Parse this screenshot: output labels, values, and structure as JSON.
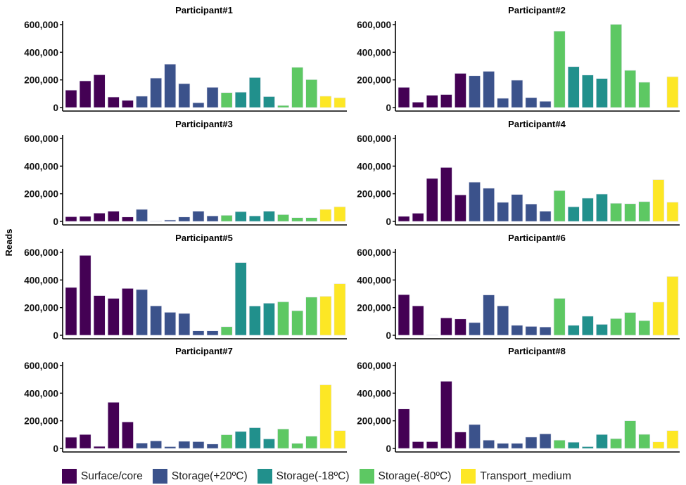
{
  "chart_data": {
    "type": "bar",
    "ylabel": "Reads",
    "ylim": [
      0,
      600000
    ],
    "yticks": [
      0,
      200000,
      400000,
      600000
    ],
    "ytick_labels": [
      "0",
      "200,000",
      "400,000",
      "600,000"
    ],
    "grid": false,
    "legend_position": "bottom",
    "legend": [
      {
        "name": "Surface/core",
        "color": "#440154"
      },
      {
        "name": "Storage(+20ºC)",
        "color": "#3b528b"
      },
      {
        "name": "Storage(-18ºC)",
        "color": "#21908c"
      },
      {
        "name": "Storage(-80ºC)",
        "color": "#5dc863"
      },
      {
        "name": "Transport_medium",
        "color": "#fde725"
      }
    ],
    "slot_groups": [
      0,
      0,
      0,
      0,
      0,
      1,
      1,
      1,
      1,
      1,
      1,
      3,
      2,
      2,
      2,
      3,
      3,
      3,
      4,
      4
    ],
    "facets": [
      {
        "title": "Participant#1",
        "values": [
          126000,
          193000,
          237000,
          76000,
          52000,
          82000,
          213000,
          314000,
          173000,
          35000,
          146000,
          108000,
          111000,
          217000,
          79000,
          15000,
          291000,
          202000,
          82000,
          71000
        ]
      },
      {
        "title": "Participant#2",
        "values": [
          146000,
          39000,
          89000,
          94000,
          247000,
          230000,
          262000,
          67000,
          198000,
          72000,
          45000,
          553000,
          296000,
          235000,
          210000,
          602000,
          269000,
          183000,
          null,
          223000
        ]
      },
      {
        "title": "Participant#3",
        "values": [
          34000,
          37000,
          60000,
          74000,
          32000,
          87000,
          3000,
          10000,
          32000,
          74000,
          40000,
          44000,
          71000,
          40000,
          74000,
          49000,
          27000,
          27000,
          87000,
          106000
        ]
      },
      {
        "title": "Participant#4",
        "values": [
          37000,
          59000,
          311000,
          390000,
          192000,
          284000,
          240000,
          138000,
          195000,
          126000,
          74000,
          223000,
          106000,
          168000,
          198000,
          131000,
          128000,
          143000,
          302000,
          139000
        ]
      },
      {
        "title": "Participant#5",
        "values": [
          346000,
          578000,
          287000,
          267000,
          339000,
          331000,
          213000,
          166000,
          158000,
          32000,
          32000,
          62000,
          526000,
          212000,
          232000,
          242000,
          178000,
          276000,
          282000,
          373000
        ]
      },
      {
        "title": "Participant#6",
        "values": [
          294000,
          213000,
          3000,
          126000,
          118000,
          92000,
          292000,
          213000,
          72000,
          64000,
          60000,
          267000,
          72000,
          138000,
          79000,
          121000,
          165000,
          106000,
          240000,
          425000
        ]
      },
      {
        "title": "Participant#7",
        "values": [
          81000,
          101000,
          15000,
          334000,
          192000,
          39000,
          55000,
          13000,
          52000,
          49000,
          32000,
          99000,
          123000,
          150000,
          69000,
          141000,
          37000,
          89000,
          460000,
          129000
        ]
      },
      {
        "title": "Participant#8",
        "values": [
          286000,
          49000,
          49000,
          486000,
          119000,
          173000,
          60000,
          37000,
          37000,
          82000,
          106000,
          60000,
          45000,
          13000,
          101000,
          71000,
          200000,
          102000,
          47000,
          129000
        ]
      }
    ]
  }
}
